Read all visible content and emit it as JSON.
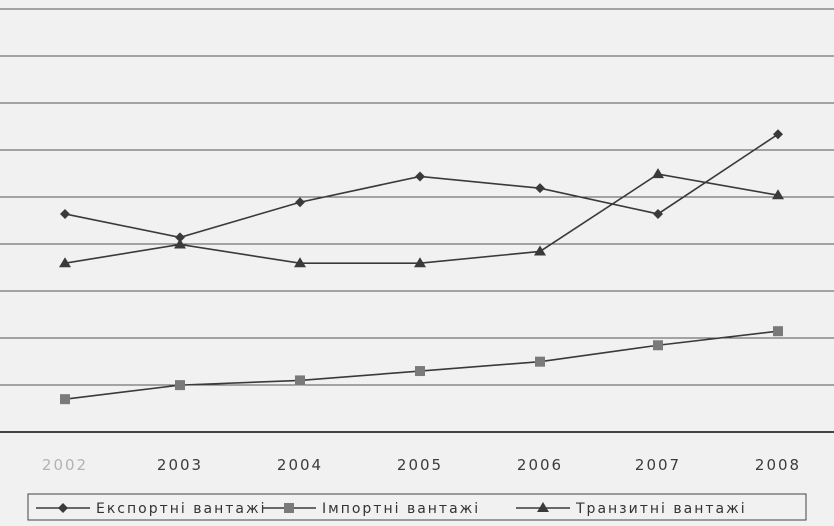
{
  "chart_data": {
    "type": "line",
    "categories": [
      "2002",
      "2003",
      "2004",
      "2005",
      "2006",
      "2007",
      "2008"
    ],
    "series": [
      {
        "name": "Експортні вантажі",
        "marker": "diamond",
        "values": [
          46.5,
          41.5,
          49,
          54.5,
          52,
          46.5,
          63.5
        ]
      },
      {
        "name": "Імпортні вантажі",
        "marker": "square",
        "values": [
          7,
          10,
          11,
          13,
          15,
          18.5,
          21.5
        ]
      },
      {
        "name": "Транзитні вантажі",
        "marker": "triangle",
        "values": [
          36,
          40,
          36,
          36,
          38.5,
          55,
          50.5
        ]
      }
    ],
    "ylim": [
      0,
      90
    ],
    "grid": true,
    "legend_position": "bottom",
    "colors": {
      "line": "#3a3a3a",
      "grid": "#555555",
      "background": "#f1f1f1"
    }
  }
}
